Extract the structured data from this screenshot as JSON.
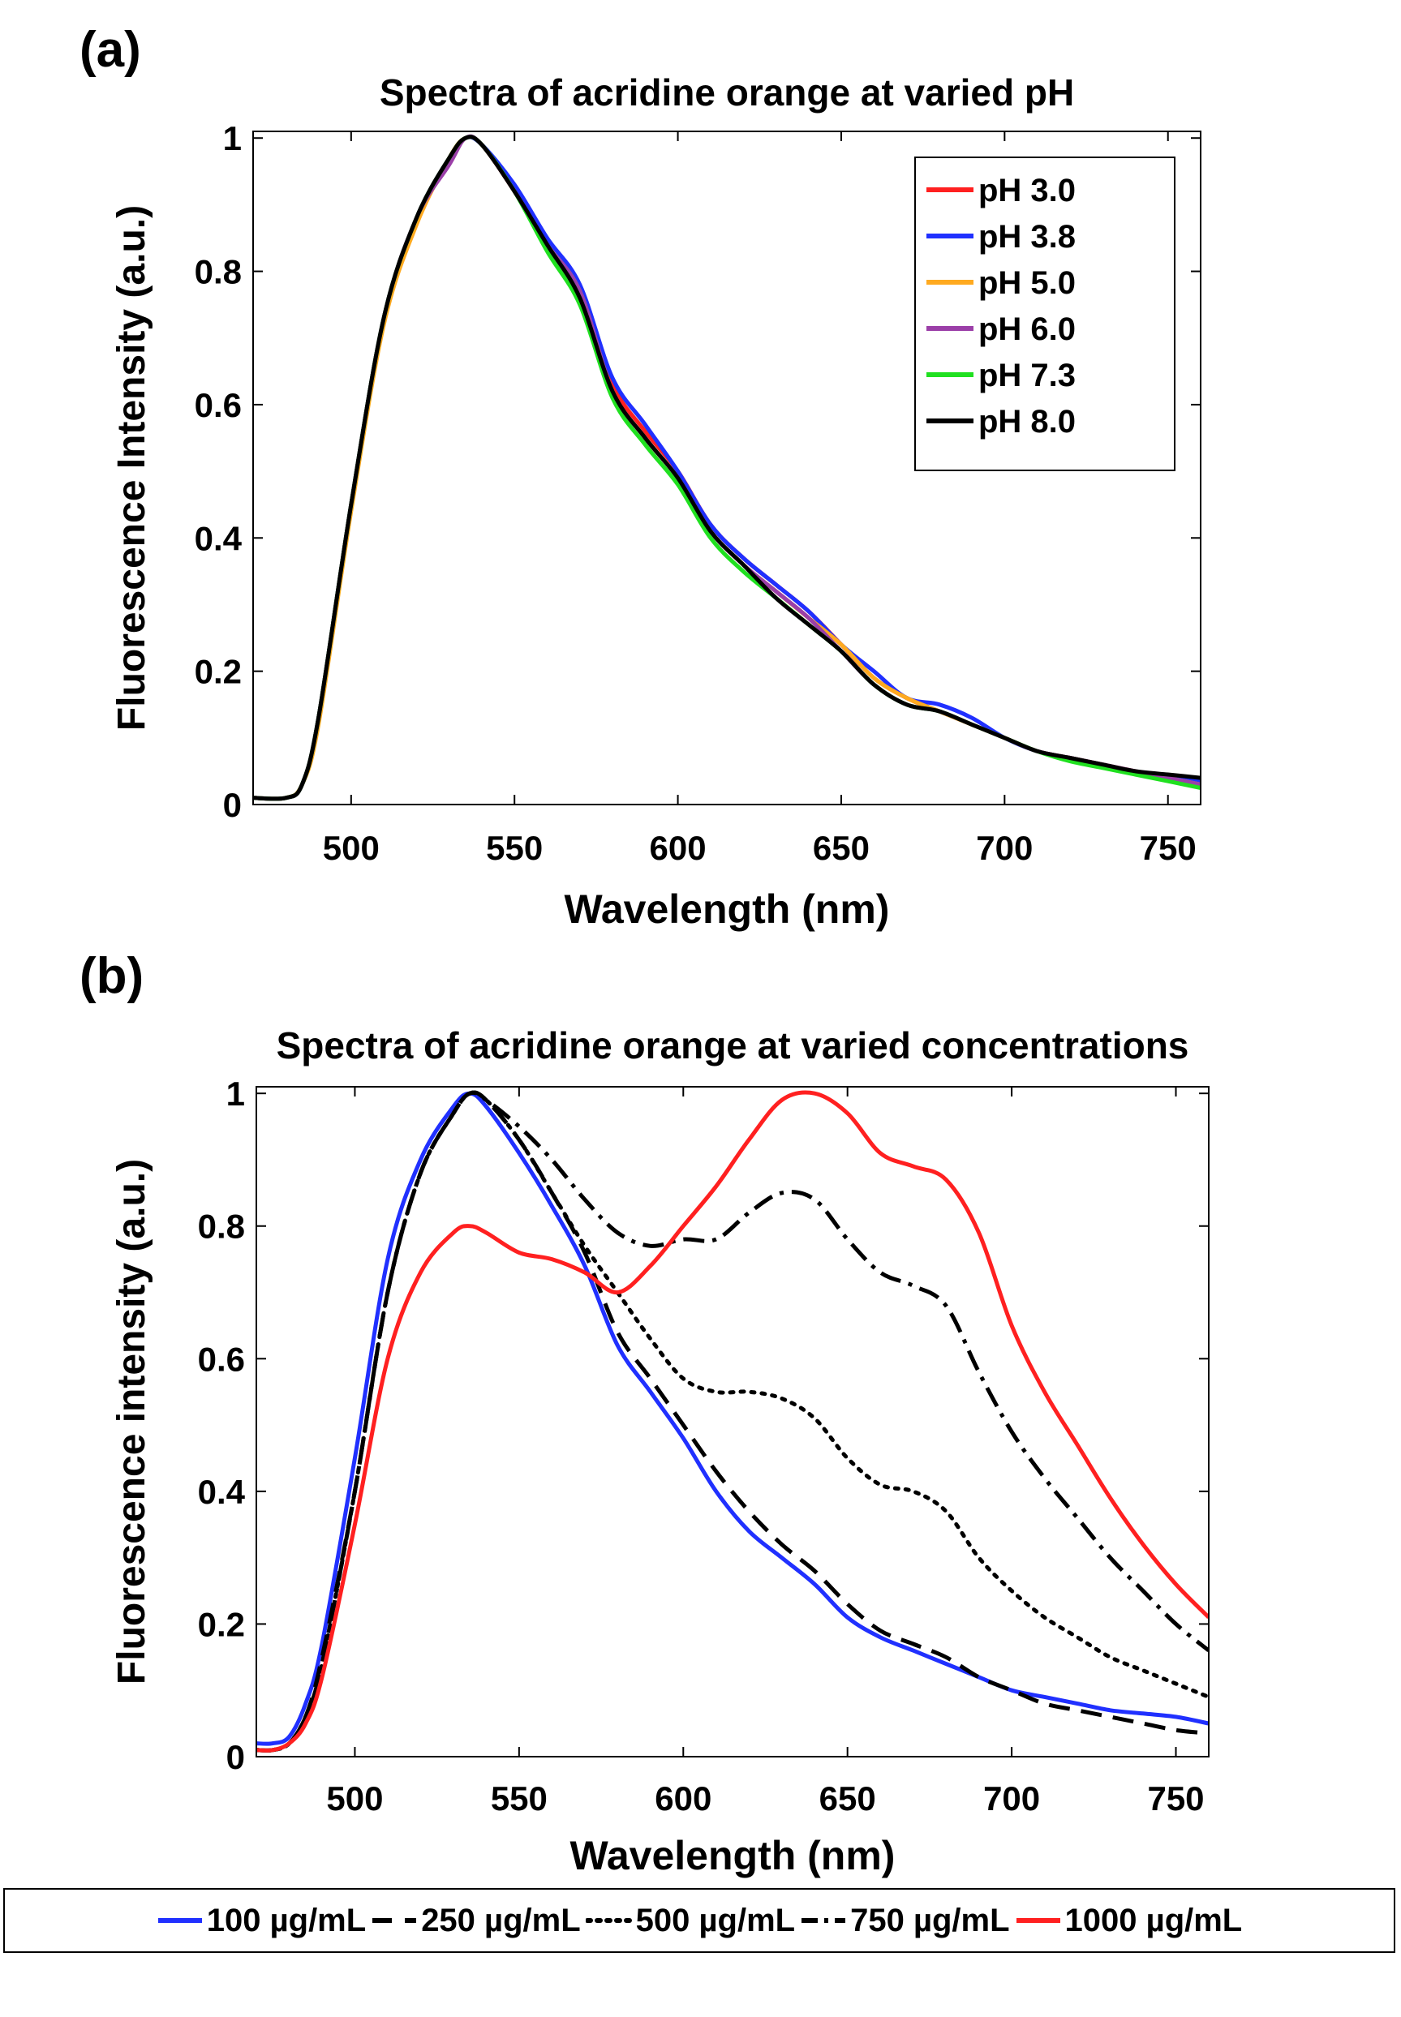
{
  "panel_labels": [
    "(a)",
    "(b)"
  ],
  "chart_data": [
    {
      "type": "line",
      "title": "Spectra of acridine orange at varied pH",
      "xlabel": "Wavelength (nm)",
      "ylabel": "Fluorescence Intensity (a.u.)",
      "xlim": [
        470,
        760
      ],
      "ylim": [
        0,
        1.01
      ],
      "xticks": [
        500,
        550,
        600,
        650,
        700,
        750
      ],
      "yticks": [
        0,
        0.2,
        0.4,
        0.6,
        0.8,
        1
      ],
      "ytick_labels": [
        "0",
        "0.2",
        "0.4",
        "0.6",
        "0.8",
        "1"
      ],
      "legend_position": "top-right",
      "x": [
        470,
        480,
        485,
        490,
        500,
        510,
        520,
        530,
        535,
        540,
        550,
        560,
        570,
        580,
        590,
        600,
        610,
        620,
        630,
        640,
        650,
        660,
        670,
        680,
        690,
        700,
        710,
        720,
        730,
        740,
        750,
        760
      ],
      "series": [
        {
          "name": "pH 3.0",
          "color": "#ff2020",
          "dash": "solid",
          "values": [
            0.01,
            0.01,
            0.03,
            0.13,
            0.45,
            0.73,
            0.88,
            0.97,
            1.0,
            0.99,
            0.92,
            0.84,
            0.77,
            0.63,
            0.56,
            0.5,
            0.42,
            0.37,
            0.33,
            0.29,
            0.24,
            0.19,
            0.16,
            0.14,
            0.12,
            0.1,
            0.08,
            0.07,
            0.06,
            0.05,
            0.04,
            0.035
          ]
        },
        {
          "name": "pH 3.8",
          "color": "#2030ff",
          "dash": "solid",
          "values": [
            0.01,
            0.01,
            0.03,
            0.13,
            0.45,
            0.73,
            0.88,
            0.97,
            1.0,
            0.99,
            0.93,
            0.85,
            0.78,
            0.64,
            0.57,
            0.5,
            0.42,
            0.37,
            0.33,
            0.29,
            0.24,
            0.2,
            0.16,
            0.15,
            0.13,
            0.1,
            0.08,
            0.07,
            0.06,
            0.05,
            0.04,
            0.035
          ]
        },
        {
          "name": "pH 5.0",
          "color": "#ffaa20",
          "dash": "solid",
          "values": [
            0.01,
            0.01,
            0.03,
            0.12,
            0.44,
            0.72,
            0.87,
            0.97,
            1.0,
            0.99,
            0.92,
            0.84,
            0.77,
            0.62,
            0.55,
            0.49,
            0.41,
            0.36,
            0.32,
            0.28,
            0.24,
            0.19,
            0.16,
            0.14,
            0.12,
            0.1,
            0.08,
            0.07,
            0.06,
            0.05,
            0.04,
            0.03
          ]
        },
        {
          "name": "pH 6.0",
          "color": "#9b3fa8",
          "dash": "solid",
          "values": [
            0.01,
            0.01,
            0.03,
            0.13,
            0.45,
            0.73,
            0.88,
            0.96,
            1.0,
            0.99,
            0.92,
            0.84,
            0.77,
            0.62,
            0.55,
            0.49,
            0.41,
            0.36,
            0.32,
            0.28,
            0.23,
            0.18,
            0.15,
            0.14,
            0.12,
            0.1,
            0.08,
            0.07,
            0.06,
            0.05,
            0.04,
            0.03
          ]
        },
        {
          "name": "pH 7.3",
          "color": "#20e020",
          "dash": "solid",
          "values": [
            0.01,
            0.01,
            0.03,
            0.13,
            0.45,
            0.73,
            0.88,
            0.97,
            1.0,
            0.99,
            0.92,
            0.83,
            0.75,
            0.61,
            0.54,
            0.48,
            0.4,
            0.35,
            0.31,
            0.27,
            0.23,
            0.18,
            0.15,
            0.14,
            0.12,
            0.1,
            0.08,
            0.065,
            0.055,
            0.045,
            0.035,
            0.025
          ]
        },
        {
          "name": "pH 8.0",
          "color": "#000000",
          "dash": "solid",
          "values": [
            0.01,
            0.01,
            0.03,
            0.13,
            0.45,
            0.73,
            0.88,
            0.97,
            1.0,
            0.99,
            0.92,
            0.84,
            0.76,
            0.62,
            0.55,
            0.49,
            0.41,
            0.36,
            0.31,
            0.27,
            0.23,
            0.18,
            0.15,
            0.14,
            0.12,
            0.1,
            0.08,
            0.07,
            0.06,
            0.05,
            0.045,
            0.04
          ]
        }
      ]
    },
    {
      "type": "line",
      "title": "Spectra of acridine orange at varied concentrations",
      "xlabel": "Wavelength (nm)",
      "ylabel": "Fluorescence intensity (a.u.)",
      "xlim": [
        470,
        760
      ],
      "ylim": [
        0,
        1.01
      ],
      "xticks": [
        500,
        550,
        600,
        650,
        700,
        750
      ],
      "yticks": [
        0,
        0.2,
        0.4,
        0.6,
        0.8,
        1
      ],
      "ytick_labels": [
        "0",
        "0.2",
        "0.4",
        "0.6",
        "0.8",
        "1"
      ],
      "legend_position": "bottom-outside",
      "x": [
        470,
        475,
        480,
        485,
        490,
        500,
        510,
        520,
        530,
        535,
        540,
        550,
        560,
        570,
        580,
        590,
        600,
        610,
        620,
        630,
        640,
        650,
        660,
        670,
        680,
        690,
        700,
        710,
        720,
        730,
        740,
        750,
        760
      ],
      "series": [
        {
          "name": "100 µg/mL",
          "legend_text": "100 µg/mL",
          "color": "#2030ff",
          "dash": "solid",
          "values": [
            0.02,
            0.02,
            0.03,
            0.08,
            0.17,
            0.45,
            0.75,
            0.9,
            0.98,
            1.0,
            0.98,
            0.91,
            0.83,
            0.74,
            0.62,
            0.55,
            0.48,
            0.4,
            0.34,
            0.3,
            0.26,
            0.21,
            0.18,
            0.16,
            0.14,
            0.12,
            0.1,
            0.09,
            0.08,
            0.07,
            0.065,
            0.06,
            0.05
          ]
        },
        {
          "name": "250 µg/mL",
          "legend_text": " 250 µg/mL",
          "color": "#000000",
          "dash": "dashed",
          "values": [
            0.01,
            0.01,
            0.02,
            0.06,
            0.15,
            0.4,
            0.7,
            0.88,
            0.97,
            1.0,
            0.99,
            0.93,
            0.85,
            0.76,
            0.64,
            0.57,
            0.5,
            0.43,
            0.37,
            0.32,
            0.28,
            0.23,
            0.19,
            0.17,
            0.15,
            0.12,
            0.1,
            0.08,
            0.07,
            0.06,
            0.05,
            0.04,
            0.035
          ]
        },
        {
          "name": "500 µg/mL",
          "legend_text": "500 µg/mL",
          "color": "#000000",
          "dash": "dotted",
          "values": [
            0.01,
            0.01,
            0.02,
            0.06,
            0.14,
            0.4,
            0.7,
            0.88,
            0.97,
            1.0,
            0.99,
            0.93,
            0.85,
            0.77,
            0.7,
            0.63,
            0.57,
            0.55,
            0.55,
            0.54,
            0.51,
            0.45,
            0.41,
            0.4,
            0.37,
            0.3,
            0.25,
            0.21,
            0.18,
            0.15,
            0.13,
            0.11,
            0.09
          ]
        },
        {
          "name": "750 µg/mL",
          "legend_text": "750 µg/mL",
          "color": "#000000",
          "dash": "dashdot",
          "values": [
            0.01,
            0.01,
            0.02,
            0.06,
            0.14,
            0.4,
            0.7,
            0.88,
            0.97,
            1.0,
            0.99,
            0.95,
            0.9,
            0.84,
            0.79,
            0.77,
            0.78,
            0.78,
            0.82,
            0.85,
            0.84,
            0.78,
            0.73,
            0.71,
            0.68,
            0.58,
            0.49,
            0.42,
            0.36,
            0.3,
            0.25,
            0.2,
            0.16
          ]
        },
        {
          "name": "1000 µg/mL",
          "legend_text": "1000 µg/mL",
          "color": "#ff2020",
          "dash": "solid",
          "values": [
            0.01,
            0.01,
            0.02,
            0.05,
            0.12,
            0.35,
            0.6,
            0.73,
            0.79,
            0.8,
            0.79,
            0.76,
            0.75,
            0.73,
            0.7,
            0.74,
            0.8,
            0.86,
            0.93,
            0.99,
            1.0,
            0.97,
            0.91,
            0.89,
            0.87,
            0.79,
            0.65,
            0.55,
            0.47,
            0.39,
            0.32,
            0.26,
            0.21
          ]
        }
      ]
    }
  ]
}
